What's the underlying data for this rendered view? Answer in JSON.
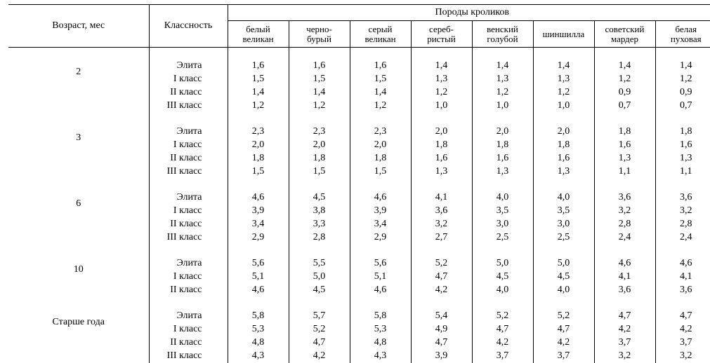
{
  "headers": {
    "age": "Возраст, мес",
    "cls": "Классность",
    "breeds_title": "Породы кроликов",
    "breeds": [
      "белый\nвеликан",
      "черно-\nбурый",
      "серый\nвеликан",
      "сереб-\nристый",
      "венский\nголубой",
      "шиншилла",
      "советский\nмардер",
      "белая\nпуховая"
    ]
  },
  "grades": [
    "Элита",
    "I класс",
    "II класс",
    "III класс"
  ],
  "groups": [
    {
      "age": "2",
      "rows": [
        [
          "1,6",
          "1,6",
          "1,6",
          "1,4",
          "1,4",
          "1,4",
          "1,4",
          "1,4"
        ],
        [
          "1,5",
          "1,5",
          "1,5",
          "1,3",
          "1,3",
          "1,3",
          "1,2",
          "1,2"
        ],
        [
          "1,4",
          "1,4",
          "1,4",
          "1,2",
          "1,2",
          "1,2",
          "0,9",
          "0,9"
        ],
        [
          "1,2",
          "1,2",
          "1,2",
          "1,0",
          "1,0",
          "1,0",
          "0,7",
          "0,7"
        ]
      ]
    },
    {
      "age": "3",
      "rows": [
        [
          "2,3",
          "2,3",
          "2,3",
          "2,0",
          "2,0",
          "2,0",
          "1,8",
          "1,8"
        ],
        [
          "2,0",
          "2,0",
          "2,0",
          "1,8",
          "1,8",
          "1,8",
          "1,6",
          "1,6"
        ],
        [
          "1,8",
          "1,8",
          "1,8",
          "1,6",
          "1,6",
          "1,6",
          "1,3",
          "1,3"
        ],
        [
          "1,5",
          "1,5",
          "1,5",
          "1,3",
          "1,3",
          "1,3",
          "1,1",
          "1,1"
        ]
      ]
    },
    {
      "age": "6",
      "rows": [
        [
          "4,6",
          "4,5",
          "4,6",
          "4,1",
          "4,0",
          "4,0",
          "3,6",
          "3,6"
        ],
        [
          "3,9",
          "3,8",
          "3,9",
          "3,6",
          "3,5",
          "3,5",
          "3,2",
          "3,2"
        ],
        [
          "3,4",
          "3,3",
          "3,4",
          "3,2",
          "3,0",
          "3,0",
          "2,8",
          "2,8"
        ],
        [
          "2,9",
          "2,8",
          "2,9",
          "2,7",
          "2,5",
          "2,5",
          "2,4",
          "2,4"
        ]
      ]
    },
    {
      "age": "10",
      "rows": [
        [
          "5,6",
          "5,5",
          "5,6",
          "5,2",
          "5,0",
          "5,0",
          "4,6",
          "4,6"
        ],
        [
          "5,1",
          "5,0",
          "5,1",
          "4,7",
          "4,5",
          "4,5",
          "4,1",
          "4,1"
        ],
        [
          "4,6",
          "4,5",
          "4,6",
          "4,2",
          "4,0",
          "4,0",
          "3,6",
          "3,6"
        ]
      ]
    },
    {
      "age": "Старше года",
      "rows": [
        [
          "5,8",
          "5,7",
          "5,8",
          "5,4",
          "5,2",
          "5,2",
          "4,7",
          "4,7"
        ],
        [
          "5,3",
          "5,2",
          "5,3",
          "4,9",
          "4,7",
          "4,7",
          "4,2",
          "4,2"
        ],
        [
          "4,8",
          "4,7",
          "4,8",
          "4,7",
          "4,2",
          "4,2",
          "3,7",
          "3,7"
        ],
        [
          "4,3",
          "4,2",
          "4,3",
          "3,9",
          "3,7",
          "3,7",
          "3,2",
          "3,2"
        ]
      ]
    }
  ],
  "style": {
    "font": "Times New Roman",
    "text_color": "#000000",
    "background": "#ffffff",
    "rule_width_outer": 1.5,
    "rule_width_inner": 1.0
  }
}
